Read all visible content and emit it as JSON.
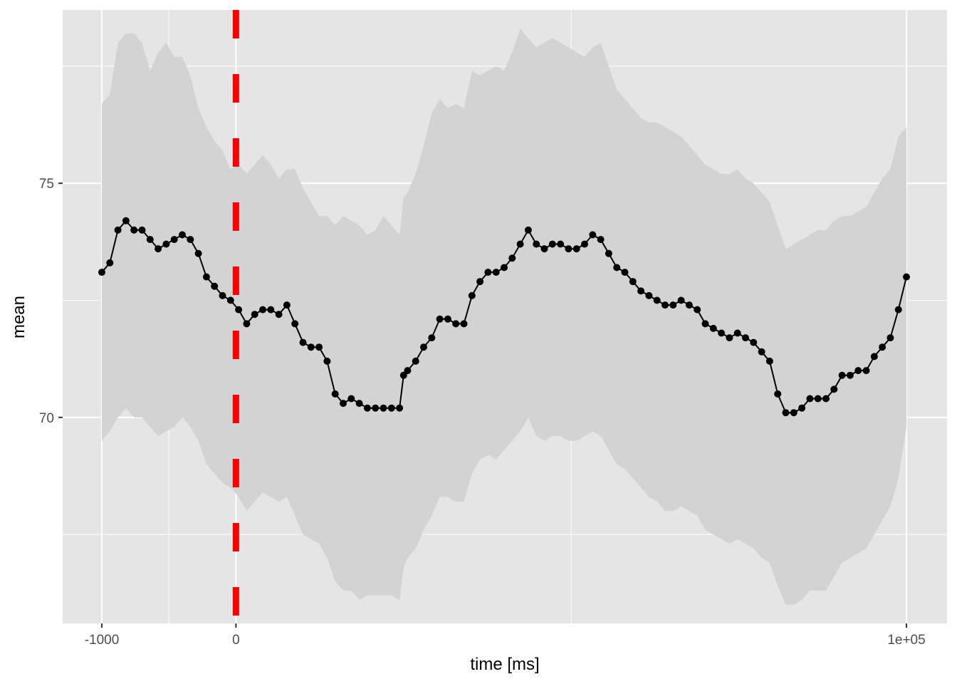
{
  "chart_data": {
    "type": "line",
    "title": "",
    "xlabel": "time [ms]",
    "ylabel": "mean",
    "x_ticks": [
      {
        "pos": 0.0,
        "label": "-1000"
      },
      {
        "pos": 0.1667,
        "label": "0"
      },
      {
        "pos": 1.0,
        "label": "1e+05"
      }
    ],
    "x_minor_gridlines": [
      0.0833,
      0.5833
    ],
    "ylim": [
      65.6,
      78.7
    ],
    "y_ticks": [
      70,
      75
    ],
    "y_minor_gridlines": [
      67.5,
      72.5,
      77.5
    ],
    "vline": {
      "pos": 0.1667,
      "color": "#ff0000",
      "style": "dashed"
    },
    "grid": true,
    "legend": "none",
    "colors": {
      "panel": "#e5e5e5",
      "grid": "#ffffff",
      "ribbon": "#d3d3d3",
      "line": "#000000",
      "points": "#000000"
    },
    "series": [
      {
        "x": [
          0.0,
          0.01,
          0.02,
          0.03,
          0.04,
          0.05,
          0.06,
          0.07,
          0.08,
          0.09,
          0.1,
          0.11,
          0.12,
          0.13,
          0.14,
          0.15,
          0.16,
          0.17,
          0.18,
          0.19,
          0.2,
          0.21,
          0.22,
          0.23,
          0.24,
          0.25,
          0.26,
          0.27,
          0.28,
          0.29,
          0.3,
          0.31,
          0.32,
          0.33,
          0.34,
          0.35,
          0.36,
          0.37,
          0.375,
          0.38,
          0.39,
          0.4,
          0.41,
          0.42,
          0.43,
          0.44,
          0.45,
          0.46,
          0.47,
          0.48,
          0.49,
          0.5,
          0.51,
          0.52,
          0.53,
          0.54,
          0.55,
          0.56,
          0.57,
          0.58,
          0.59,
          0.6,
          0.61,
          0.62,
          0.63,
          0.64,
          0.65,
          0.66,
          0.67,
          0.68,
          0.69,
          0.7,
          0.71,
          0.72,
          0.73,
          0.74,
          0.75,
          0.76,
          0.77,
          0.78,
          0.79,
          0.8,
          0.81,
          0.82,
          0.83,
          0.84,
          0.85,
          0.86,
          0.87,
          0.88,
          0.89,
          0.9,
          0.91,
          0.92,
          0.93,
          0.94,
          0.95,
          0.96,
          0.97,
          0.98,
          0.99,
          1.0
        ],
        "mean": [
          73.1,
          73.3,
          74.0,
          74.2,
          74.0,
          74.0,
          73.8,
          73.6,
          73.7,
          73.8,
          73.9,
          73.8,
          73.5,
          73.0,
          72.8,
          72.6,
          72.5,
          72.3,
          72.0,
          72.2,
          72.3,
          72.3,
          72.2,
          72.4,
          72.0,
          71.6,
          71.5,
          71.5,
          71.2,
          70.5,
          70.3,
          70.4,
          70.3,
          70.2,
          70.2,
          70.2,
          70.2,
          70.2,
          70.9,
          71.0,
          71.2,
          71.5,
          71.7,
          72.1,
          72.1,
          72.0,
          72.0,
          72.6,
          72.9,
          73.1,
          73.1,
          73.2,
          73.4,
          73.7,
          74.0,
          73.7,
          73.6,
          73.7,
          73.7,
          73.6,
          73.6,
          73.7,
          73.9,
          73.8,
          73.5,
          73.2,
          73.1,
          72.9,
          72.7,
          72.6,
          72.5,
          72.4,
          72.4,
          72.5,
          72.4,
          72.3,
          72.0,
          71.9,
          71.8,
          71.7,
          71.8,
          71.7,
          71.6,
          71.4,
          71.2,
          70.5,
          70.1,
          70.1,
          70.2,
          70.4,
          70.4,
          70.4,
          70.6,
          70.9,
          70.9,
          71.0,
          71.0,
          71.3,
          71.5,
          71.7,
          72.3,
          73.0
        ],
        "upper": [
          76.7,
          76.9,
          78.0,
          78.2,
          78.2,
          78.0,
          77.4,
          77.8,
          78.0,
          77.7,
          77.7,
          77.3,
          76.6,
          76.2,
          75.9,
          75.7,
          75.3,
          75.4,
          75.2,
          75.4,
          75.6,
          75.4,
          75.1,
          75.3,
          75.3,
          74.9,
          74.6,
          74.3,
          74.3,
          74.1,
          74.3,
          74.2,
          74.1,
          73.9,
          74.0,
          74.3,
          74.1,
          73.9,
          74.7,
          74.8,
          75.2,
          75.8,
          76.5,
          76.8,
          76.6,
          76.7,
          76.6,
          77.4,
          77.3,
          77.4,
          77.5,
          77.4,
          77.8,
          78.3,
          78.1,
          77.9,
          78.0,
          78.1,
          78.0,
          77.9,
          77.8,
          77.7,
          77.9,
          78.0,
          77.5,
          77.0,
          76.8,
          76.6,
          76.4,
          76.3,
          76.3,
          76.2,
          76.1,
          76.0,
          75.8,
          75.6,
          75.4,
          75.3,
          75.2,
          75.2,
          75.3,
          75.1,
          75.0,
          74.8,
          74.6,
          74.1,
          73.6,
          73.7,
          73.8,
          73.9,
          74.0,
          74.0,
          74.2,
          74.3,
          74.3,
          74.4,
          74.5,
          74.8,
          75.1,
          75.3,
          76.0,
          76.2
        ],
        "lower": [
          69.5,
          69.7,
          70.0,
          70.2,
          70.0,
          70.0,
          69.8,
          69.6,
          69.7,
          69.8,
          70.0,
          69.8,
          69.5,
          69.0,
          68.8,
          68.6,
          68.5,
          68.3,
          68.0,
          68.2,
          68.4,
          68.3,
          68.2,
          68.3,
          67.9,
          67.5,
          67.4,
          67.3,
          67.0,
          66.5,
          66.3,
          66.3,
          66.1,
          66.2,
          66.2,
          66.2,
          66.2,
          66.1,
          66.8,
          67.0,
          67.2,
          67.6,
          67.9,
          68.3,
          68.3,
          68.2,
          68.2,
          68.8,
          69.1,
          69.2,
          69.1,
          69.3,
          69.5,
          69.7,
          70.0,
          69.6,
          69.5,
          69.6,
          69.6,
          69.5,
          69.5,
          69.6,
          69.7,
          69.6,
          69.3,
          69.0,
          68.9,
          68.7,
          68.5,
          68.3,
          68.2,
          68.0,
          68.0,
          68.1,
          68.0,
          67.9,
          67.6,
          67.5,
          67.4,
          67.3,
          67.4,
          67.3,
          67.2,
          67.0,
          66.9,
          66.4,
          66.0,
          66.0,
          66.1,
          66.3,
          66.3,
          66.3,
          66.6,
          66.9,
          67.0,
          67.1,
          67.2,
          67.5,
          67.8,
          68.1,
          68.7,
          69.8
        ]
      }
    ]
  }
}
